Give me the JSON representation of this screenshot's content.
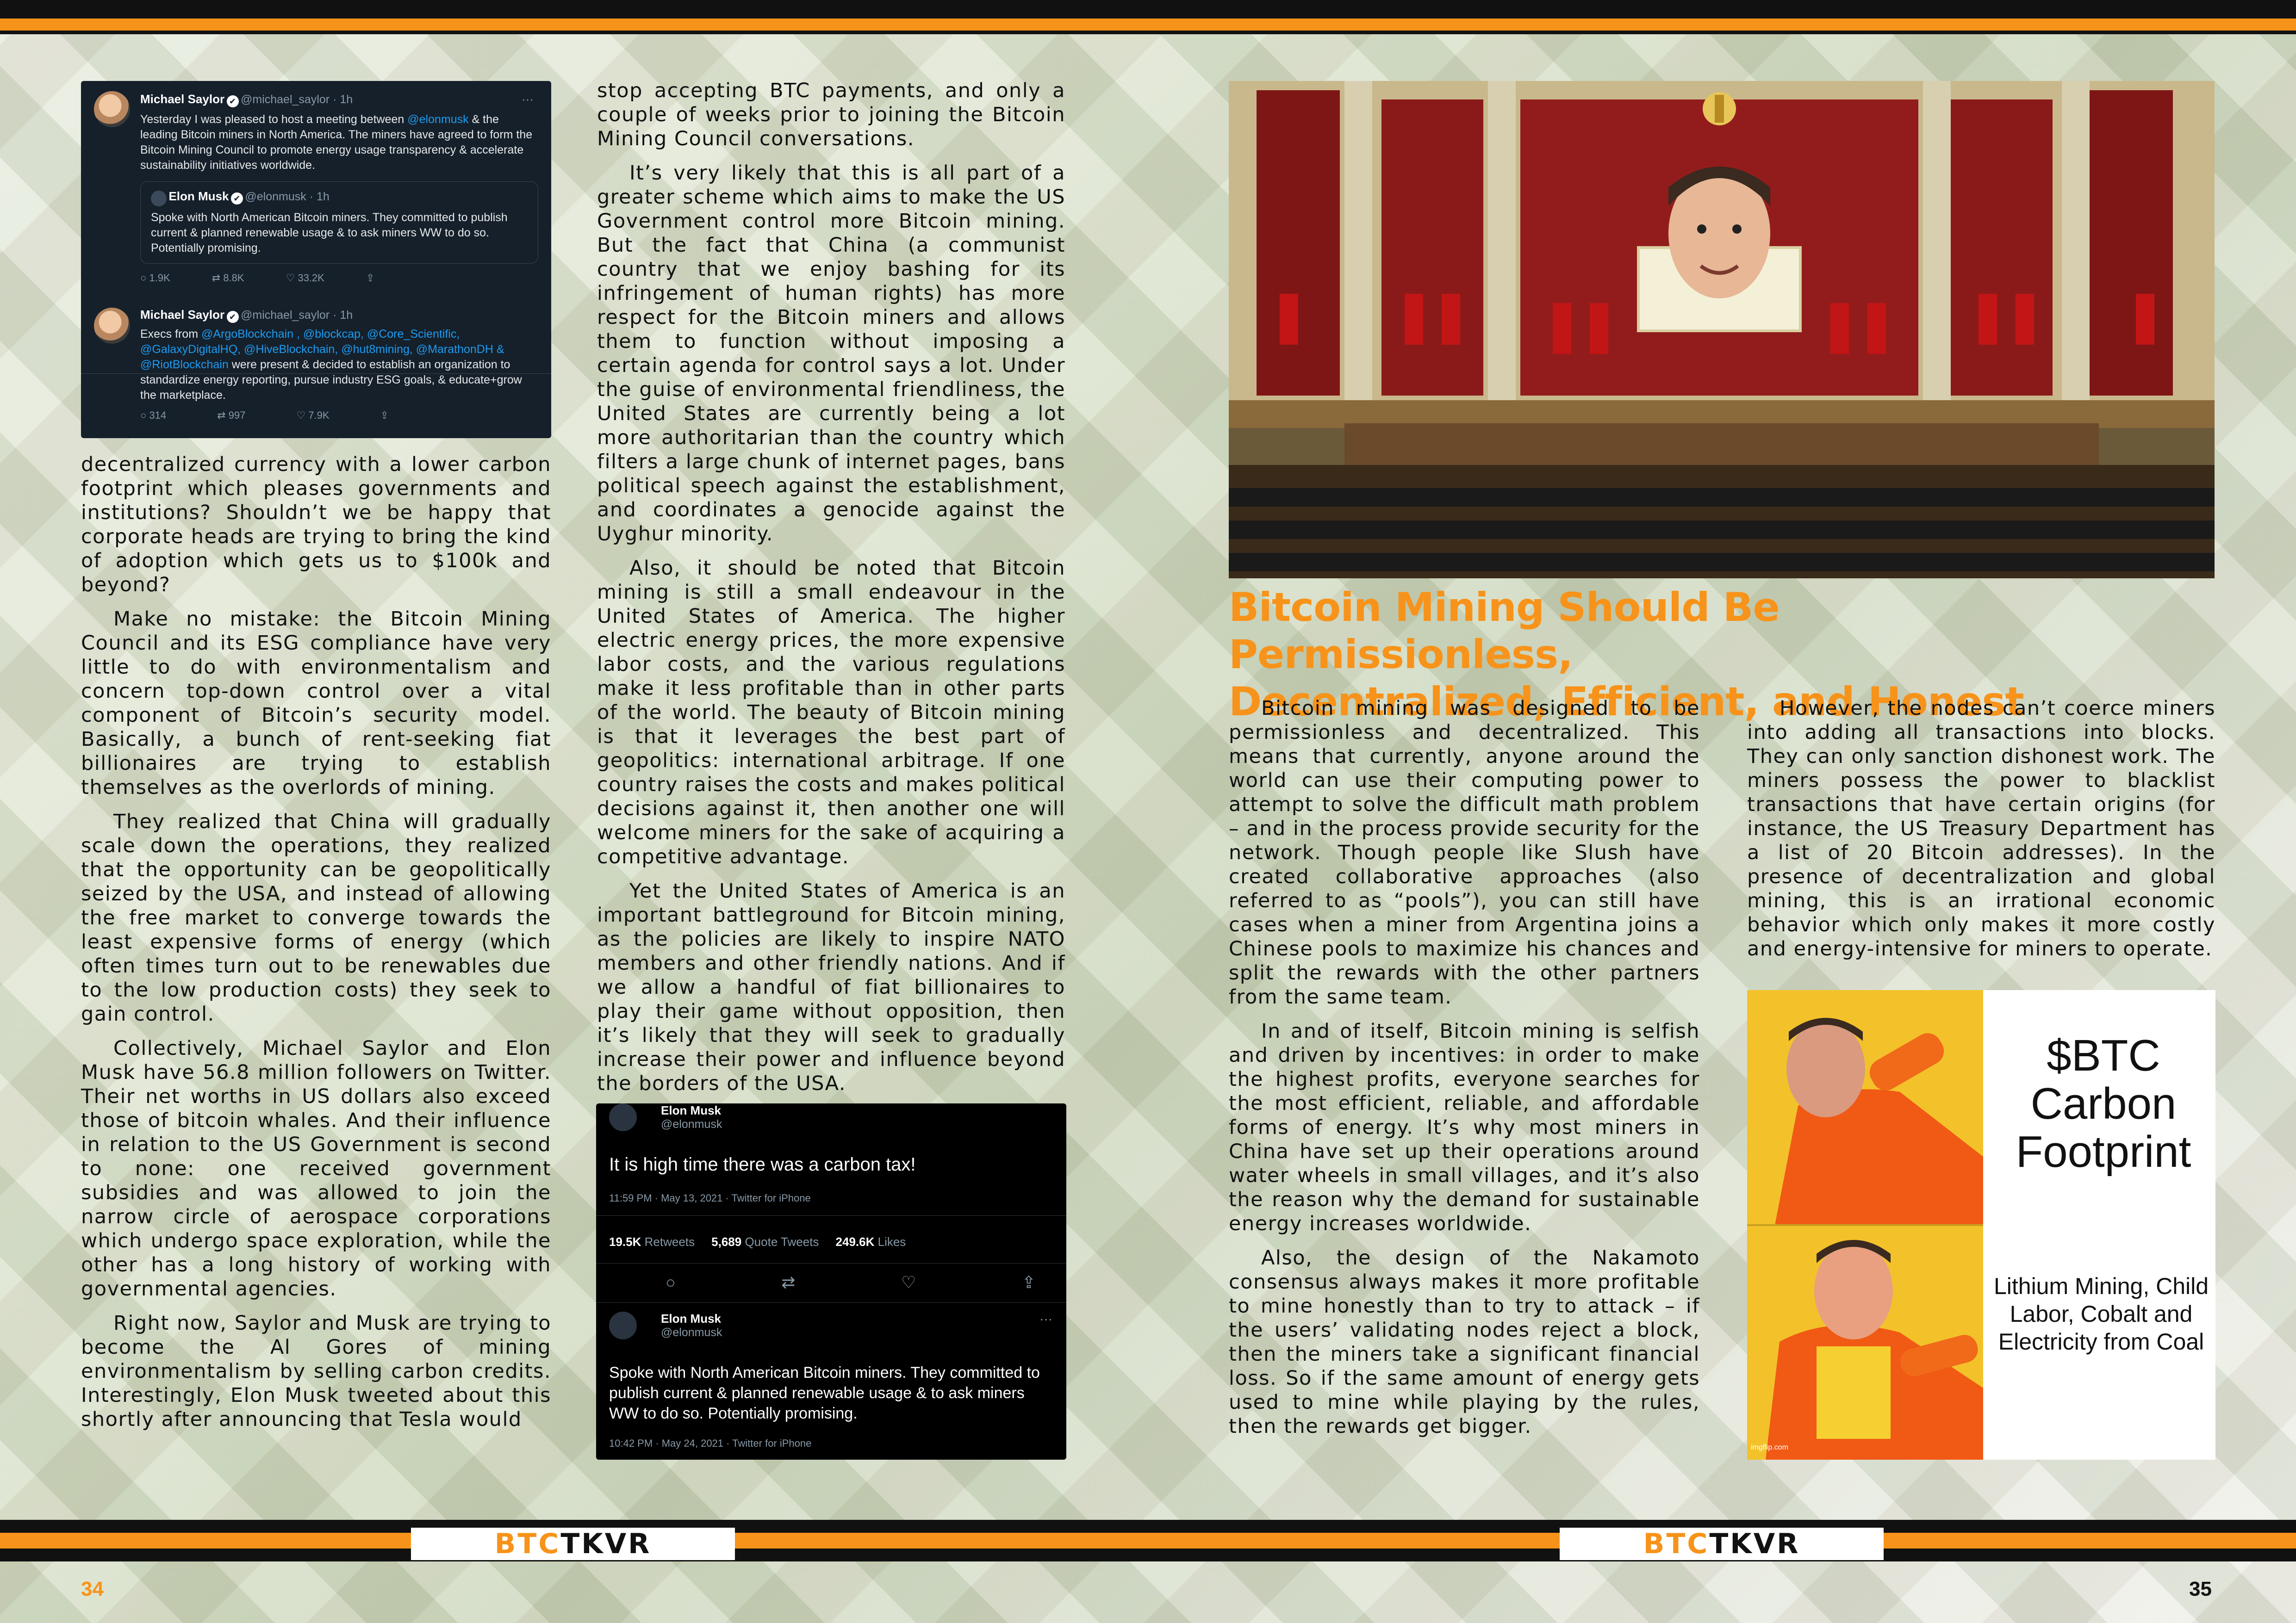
{
  "left_page": {
    "number": "34",
    "tweet1": {
      "name": "Michael Saylor",
      "handle": "@michael_saylor · 1h",
      "body_parts": [
        "Yesterday I was pleased to host a meeting between ",
        "@elonmusk",
        " & the leading Bitcoin miners in North America.  The miners have agreed to form the Bitcoin Mining Council to promote energy usage transparency & accelerate sustainability initiatives worldwide."
      ],
      "quote_name": "Elon Musk",
      "quote_handle": "@elonmusk · 1h",
      "quote_body": "Spoke with North American Bitcoin miners. They committed to publish current & planned renewable usage & to ask miners WW to do so. Potentially promising.",
      "stats": [
        "1.9K",
        "8.8K",
        "33.2K"
      ]
    },
    "tweet2": {
      "name": "Michael Saylor",
      "handle": "@michael_saylor · 1h",
      "body_lead": "Execs from ",
      "mentions": "@ArgoBlockchain , @blockcap, @Core_Scientific, @GalaxyDigitalHQ, @HiveBlockchain, @hut8mining, @MarathonDH & @RiotBlockchain",
      "body_tail": " were present & decided to establish an organization to standardize energy reporting, pursue industry ESG goals, & educate+grow the marketplace.",
      "stats": [
        "314",
        "997",
        "7.9K"
      ]
    },
    "col1": [
      "decentralized currency with a lower carbon footprint which pleases governments and institutions? Shouldn’t we be happy that corporate heads are trying to bring the kind of adoption which gets us to $100k and beyond?",
      "Make no mistake: the Bitcoin Mining Council and its ESG compliance have very little to do with environmentalism and concern top-down control over a vital component of Bitcoin’s security model. Basically, a bunch of rent-seeking fiat billionaires are trying to establish themselves as the overlords of mining.",
      "They realized that China will gradually scale down the operations, they realized that the opportunity can be geopolitically seized by the USA, and instead of allowing the free market to converge towards the least expensive forms of energy (which often times turn out to be renewables due to the low production costs) they seek to gain control.",
      "Collectively, Michael Saylor and Elon Musk have 56.8 million followers on Twitter. Their net worths in US dollars also exceed those of bitcoin whales. And their influence in relation to the US Government is second to none: one received government subsidies and was allowed to join the narrow circle of aerospace corporations which undergo space exploration, while the other has a long history of working with governmental agencies.",
      "Right now, Saylor and Musk are trying to become the Al Gores of mining environmentalism by selling carbon credits. Interestingly, Elon Musk tweeted about this shortly after announcing that Tesla would"
    ],
    "col2": [
      "stop accepting BTC payments, and only a couple of weeks prior to joining the Bitcoin Mining Council conversations.",
      "It’s very likely that this is all part of a greater scheme which aims to make the US Government control more Bitcoin mining. But the fact that China (a communist country that we enjoy bashing for its infringement of human rights) has more respect for the Bitcoin miners and allows them to function without imposing a certain agenda for control says a lot. Under the guise of environmental friendliness, the United States are currently being a lot more authoritarian than the country which filters a large chunk of internet pages, bans political speech against the establishment, and coordinates a genocide against the Uyghur minority.",
      "Also, it should be noted that Bitcoin mining is still a small endeavour in the United States of America. The higher electric energy prices, the more expensive labor costs, and the various regulations make it less profitable than in other parts of the world. The beauty of Bitcoin mining is that it leverages the best part of geopolitics: international arbitrage. If one country raises the costs and makes political decisions against it, then another one will welcome miners for the sake of acquiring a competitive advantage.",
      "Yet the United States of America is an important battleground for Bitcoin mining, as the policies are likely to inspire NATO members and other friendly nations. And if we allow a handful of fiat billionaires to play their game without opposition, then it’s likely that they will seek to gradually increase their power and influence beyond the borders of the USA."
    ],
    "tweet3": {
      "name": "Elon Musk",
      "handle": "@elonmusk",
      "body": "It is high time there was a carbon tax!",
      "meta": "11:59 PM · May 13, 2021 · Twitter for iPhone",
      "retweets_num": "19.5K",
      "retweets_label": "Retweets",
      "quotes_num": "5,689",
      "quotes_label": "Quote Tweets",
      "likes_num": "249.6K",
      "likes_label": "Likes",
      "reply_name": "Elon Musk",
      "reply_handle": "@elonmusk",
      "reply_body": "Spoke with North American Bitcoin miners. They committed to publish current & planned renewable usage & to ask miners WW to do so. Potentially promising.",
      "reply_meta": "10:42 PM · May 24, 2021 · Twitter for iPhone"
    }
  },
  "right_page": {
    "number": "35",
    "headline_line1": "Bitcoin Mining Should Be Permissionless,",
    "headline_line2": "Decentralized, Efficient, and Honest",
    "col3": [
      "Bitcoin mining was designed to be permissionless and decentralized. This means that currently, anyone around the world can use their computing power to attempt to solve the difficult math problem – and in the process provide security for the network. Though people like Slush have created collaborative approaches (also referred to as “pools”), you can still have cases when a miner from Argentina joins a Chinese pools to maximize his chances and split the rewards with the other partners from the same team.",
      "In and of itself, Bitcoin mining is selfish and driven by incentives: in order to make the highest profits, everyone searches for the most efficient, reliable, and affordable forms of energy. It’s why most miners in China have set up their operations around water wheels in small villages, and it’s also the reason why the demand for sustainable energy increases worldwide.",
      "Also, the design of the Nakamoto consensus always makes it more profitable to mine honestly than to try to attack – if the users’ validating nodes reject a block, then the miners take a significant financial loss. So if the same amount of energy gets used to mine while playing by the rules, then the rewards get bigger."
    ],
    "col4": [
      "However, the nodes can’t coerce miners into adding all transactions into blocks. They can only sanction dishonest work. The miners possess the power to blacklist transactions that have certain origins (for instance, the US Treasury Department has a list of 20 Bitcoin addresses). In the presence of decentralization and global mining, this is an irrational economic behavior which only makes it more costly and energy-intensive for miners to operate."
    ],
    "meme": {
      "top_text": "$BTC Carbon Footprint",
      "bottom_text": "Lithium Mining, Child Labor, Cobalt and Electricity from Coal",
      "watermark": "imgflip.com"
    }
  },
  "logo": {
    "part1": "BTC",
    "part2": "TKVR"
  },
  "colors": {
    "accent": "#f7931a",
    "dark": "#111111",
    "tweet_bg": "#15202b",
    "link": "#1d9bf0"
  }
}
